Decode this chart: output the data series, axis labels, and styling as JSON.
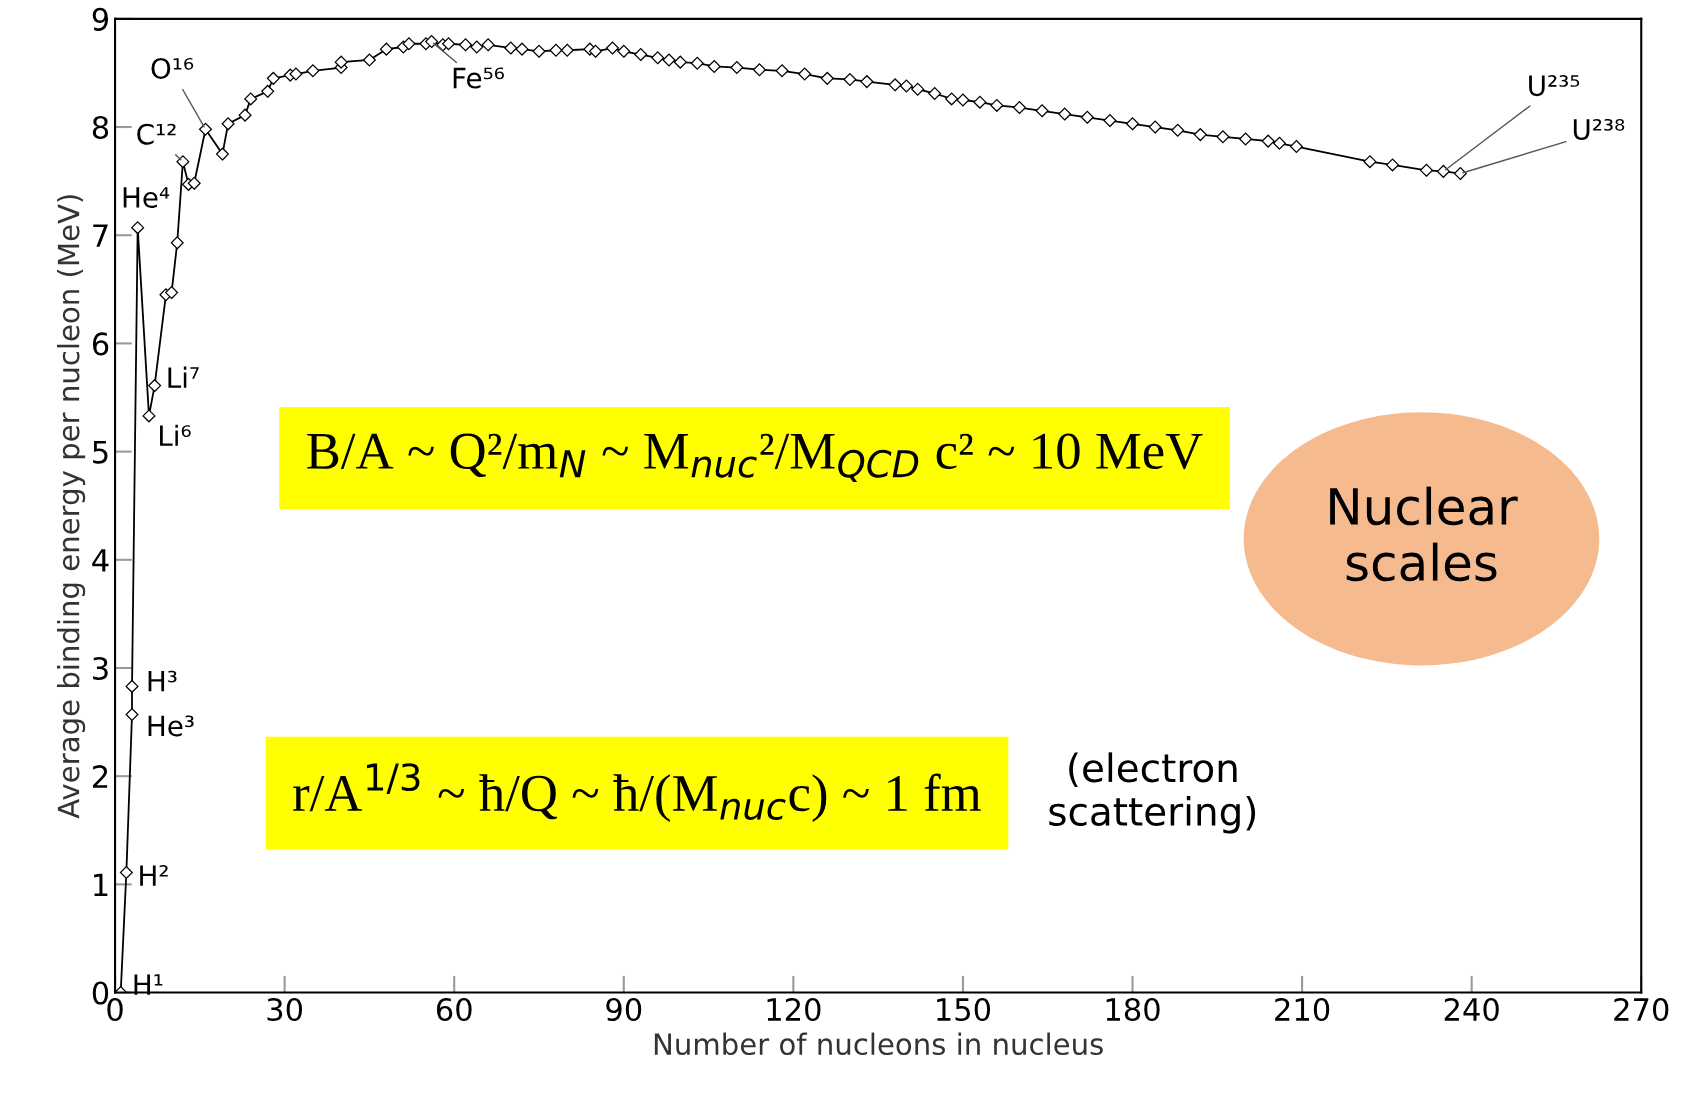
{
  "chart_data": {
    "type": "line",
    "xlabel": "Number of nucleons in nucleus",
    "ylabel": "Average binding energy per nucleon (MeV)",
    "xlim": [
      0,
      270
    ],
    "xticks": [
      0,
      30,
      60,
      90,
      120,
      150,
      180,
      210,
      240,
      270
    ],
    "ylim": [
      0,
      9
    ],
    "yticks": [
      0,
      1,
      2,
      3,
      4,
      5,
      6,
      7,
      8,
      9
    ],
    "grid": false,
    "marker": "diamond",
    "line_style": "solid",
    "series": [
      {
        "color": "#000000",
        "x": [
          1,
          2,
          3,
          3,
          4,
          6,
          7,
          9,
          10,
          11,
          12,
          13,
          14,
          16,
          19,
          20,
          23,
          24,
          27,
          28,
          31,
          32,
          35,
          40,
          40,
          45,
          48,
          51,
          52,
          55,
          56,
          58,
          59,
          62,
          64,
          66,
          70,
          72,
          75,
          78,
          80,
          84,
          85,
          88,
          90,
          93,
          96,
          98,
          100,
          103,
          106,
          110,
          114,
          118,
          122,
          126,
          130,
          133,
          138,
          140,
          142,
          145,
          148,
          150,
          153,
          156,
          160,
          164,
          168,
          172,
          176,
          180,
          184,
          188,
          192,
          196,
          200,
          204,
          206,
          209,
          222,
          226,
          232,
          235,
          238
        ],
        "values": [
          0,
          1.11,
          2.57,
          2.83,
          7.07,
          5.33,
          5.61,
          6.45,
          6.47,
          6.93,
          7.68,
          7.47,
          7.48,
          7.98,
          7.75,
          8.03,
          8.11,
          8.26,
          8.33,
          8.45,
          8.48,
          8.49,
          8.52,
          8.55,
          8.6,
          8.62,
          8.72,
          8.74,
          8.77,
          8.77,
          8.79,
          8.76,
          8.77,
          8.76,
          8.74,
          8.76,
          8.73,
          8.72,
          8.7,
          8.71,
          8.71,
          8.72,
          8.7,
          8.73,
          8.7,
          8.67,
          8.64,
          8.62,
          8.6,
          8.59,
          8.56,
          8.55,
          8.53,
          8.52,
          8.49,
          8.45,
          8.44,
          8.42,
          8.39,
          8.38,
          8.35,
          8.31,
          8.26,
          8.25,
          8.23,
          8.2,
          8.18,
          8.15,
          8.12,
          8.09,
          8.06,
          8.03,
          8.0,
          7.97,
          7.93,
          7.91,
          7.89,
          7.87,
          7.85,
          7.82,
          7.68,
          7.65,
          7.6,
          7.59,
          7.57
        ]
      }
    ],
    "annotations": [
      {
        "text": "H¹",
        "x": 1,
        "y": 0
      },
      {
        "text": "H²",
        "x": 2,
        "y": 1.11
      },
      {
        "text": "He³",
        "x": 3,
        "y": 2.57
      },
      {
        "text": "H³",
        "x": 3,
        "y": 2.83
      },
      {
        "text": "He⁴",
        "x": 4,
        "y": 7.07
      },
      {
        "text": "Li⁶",
        "x": 6,
        "y": 5.33
      },
      {
        "text": "Li⁷",
        "x": 7,
        "y": 5.61
      },
      {
        "text": "C¹²",
        "x": 12,
        "y": 7.68
      },
      {
        "text": "O¹⁶",
        "x": 16,
        "y": 7.98
      },
      {
        "text": "Fe⁵⁶",
        "x": 56,
        "y": 8.79
      },
      {
        "text": "U²³⁵",
        "x": 235,
        "y": 7.59
      },
      {
        "text": "U²³⁸",
        "x": 238,
        "y": 7.57
      },
      "B/A ~ Q²/m$_{N}$ ~ M$_{nuc}$²/M$_{QCD}$ c² ~ 10 MeV",
      "r/A$^{1/3}$ ~ ħ/Q ~ ħ/(M$_{nuc}$c) ~ 1 fm",
      "Nuclear\nscales",
      "(electron\nscattering)"
    ]
  }
}
